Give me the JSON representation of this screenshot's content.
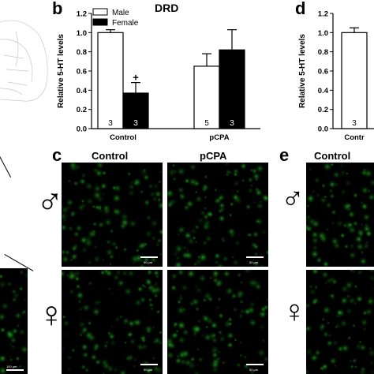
{
  "panels": {
    "b": "b",
    "c": "c",
    "d": "d",
    "e": "e"
  },
  "chart_data": [
    {
      "type": "bar",
      "title": "DRD",
      "ylabel": "Relative 5-HT levels",
      "xlabel": "",
      "ylim": [
        0,
        1.2
      ],
      "yticks": [
        "0.0",
        "0.2",
        "0.4",
        "0.6",
        "0.8",
        "1.0",
        "1.2"
      ],
      "categories": [
        "Control",
        "pCPA"
      ],
      "legend_position": "top-left",
      "series": [
        {
          "name": "Male",
          "color": "#ffffff",
          "values": [
            1.0,
            0.65
          ],
          "errors": [
            0.03,
            0.13
          ],
          "n": [
            "3",
            "5"
          ]
        },
        {
          "name": "Female",
          "color": "#000000",
          "values": [
            0.37,
            0.82
          ],
          "errors": [
            0.11,
            0.21
          ],
          "n": [
            "3",
            "3"
          ]
        }
      ],
      "annotations": [
        {
          "text": "+",
          "category": "Control",
          "series": "Female"
        }
      ]
    },
    {
      "type": "bar",
      "title": "",
      "ylabel": "Relative 5-HT levels",
      "ylim": [
        0,
        1.2
      ],
      "yticks": [
        "0.0",
        "0.2",
        "0.4",
        "0.6",
        "0.8",
        "1.0",
        "1.2"
      ],
      "categories": [
        "Control"
      ],
      "categories_visible": [
        "Contr"
      ],
      "series": [
        {
          "name": "",
          "color": "#ffffff",
          "values": [
            1.0
          ],
          "errors": [
            0.05
          ],
          "n": [
            "3"
          ]
        }
      ]
    }
  ],
  "micrographs": {
    "c_col_labels": [
      "Control",
      "pCPA"
    ],
    "e_col_label": "Control",
    "scale_label": "50 μm",
    "left_scale_label": "100 μm",
    "male_symbol": "♂",
    "female_symbol": "♀",
    "stain_color": "#2bd92b"
  }
}
